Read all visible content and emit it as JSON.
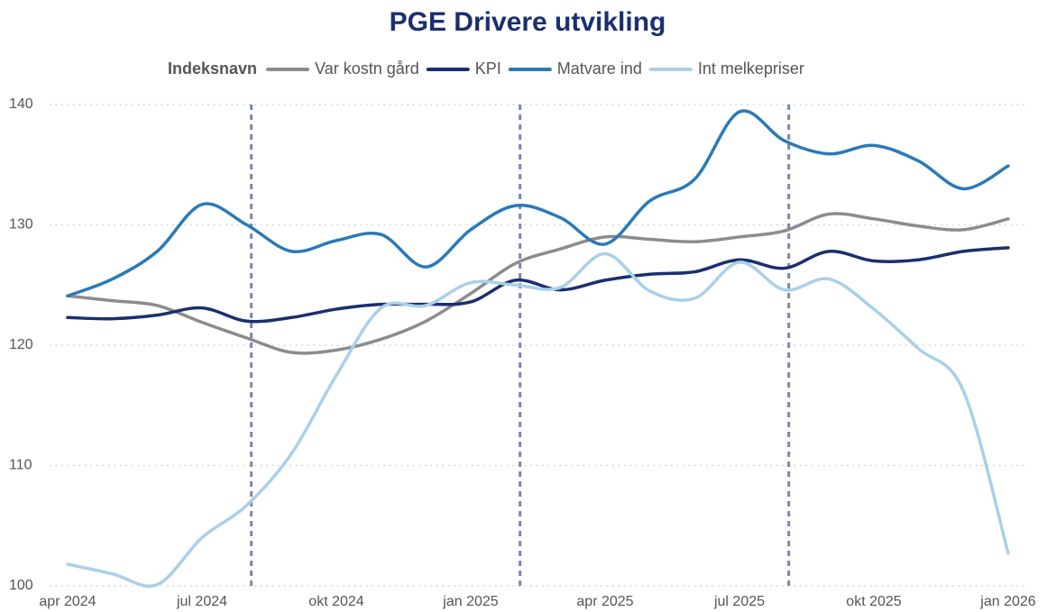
{
  "chart_data": {
    "type": "line",
    "title": "PGE Drivere utvikling",
    "legend_title": "Indeksnavn",
    "x": [
      "2024-04",
      "2024-05",
      "2024-06",
      "2024-07",
      "2024-08",
      "2024-09",
      "2024-10",
      "2024-11",
      "2024-12",
      "2025-01",
      "2025-02",
      "2025-03",
      "2025-04",
      "2025-05",
      "2025-06",
      "2025-07",
      "2025-08",
      "2025-09",
      "2025-10",
      "2025-11",
      "2025-12",
      "2026-01"
    ],
    "xlim": [
      "2024-04",
      "2026-01"
    ],
    "xticks": [
      {
        "value": "2024-04",
        "label": "apr 2024"
      },
      {
        "value": "2024-07",
        "label": "jul 2024"
      },
      {
        "value": "2024-10",
        "label": "okt 2024"
      },
      {
        "value": "2025-01",
        "label": "jan 2025"
      },
      {
        "value": "2025-04",
        "label": "apr 2025"
      },
      {
        "value": "2025-07",
        "label": "jul 2025"
      },
      {
        "value": "2025-10",
        "label": "okt 2025"
      },
      {
        "value": "2026-01",
        "label": "jan 2026"
      }
    ],
    "ylim": [
      100,
      140
    ],
    "yticks": [
      100,
      110,
      120,
      130,
      140
    ],
    "grid": true,
    "reference_lines": [
      "2024-08",
      "2025-02",
      "2025-08"
    ],
    "reference_color": "#7a86b0",
    "series": [
      {
        "name": "Var kostn gård",
        "color": "#8c8c8c",
        "values": [
          124.1,
          123.7,
          123.3,
          121.9,
          120.6,
          119.4,
          119.6,
          120.5,
          122,
          124.3,
          126.8,
          128,
          129,
          128.8,
          128.6,
          129,
          129.5,
          130.9,
          130.5,
          129.9,
          129.6,
          130.5
        ]
      },
      {
        "name": "KPI",
        "color": "#1a2f6e",
        "values": [
          122.3,
          122.2,
          122.5,
          123.1,
          122,
          122.3,
          123,
          123.4,
          123.4,
          123.6,
          125.4,
          124.6,
          125.4,
          125.9,
          126.1,
          127.1,
          126.4,
          127.8,
          127,
          127.1,
          127.8,
          128.1
        ]
      },
      {
        "name": "Matvare ind",
        "color": "#2a7ab8",
        "values": [
          124.1,
          125.5,
          127.8,
          131.7,
          130,
          127.8,
          128.7,
          129.2,
          126.5,
          129.6,
          131.6,
          130.6,
          128.4,
          132,
          133.8,
          139.4,
          137,
          135.9,
          136.6,
          135.3,
          133,
          134.9
        ]
      },
      {
        "name": "Int melkepriser",
        "color": "#a9d0e8",
        "values": [
          101.8,
          101,
          100.1,
          104,
          106.7,
          111,
          117.5,
          123.1,
          123.3,
          125.2,
          125,
          124.8,
          127.6,
          124.5,
          123.9,
          126.9,
          124.6,
          125.5,
          123,
          119.7,
          116.2,
          102.7
        ]
      }
    ]
  }
}
